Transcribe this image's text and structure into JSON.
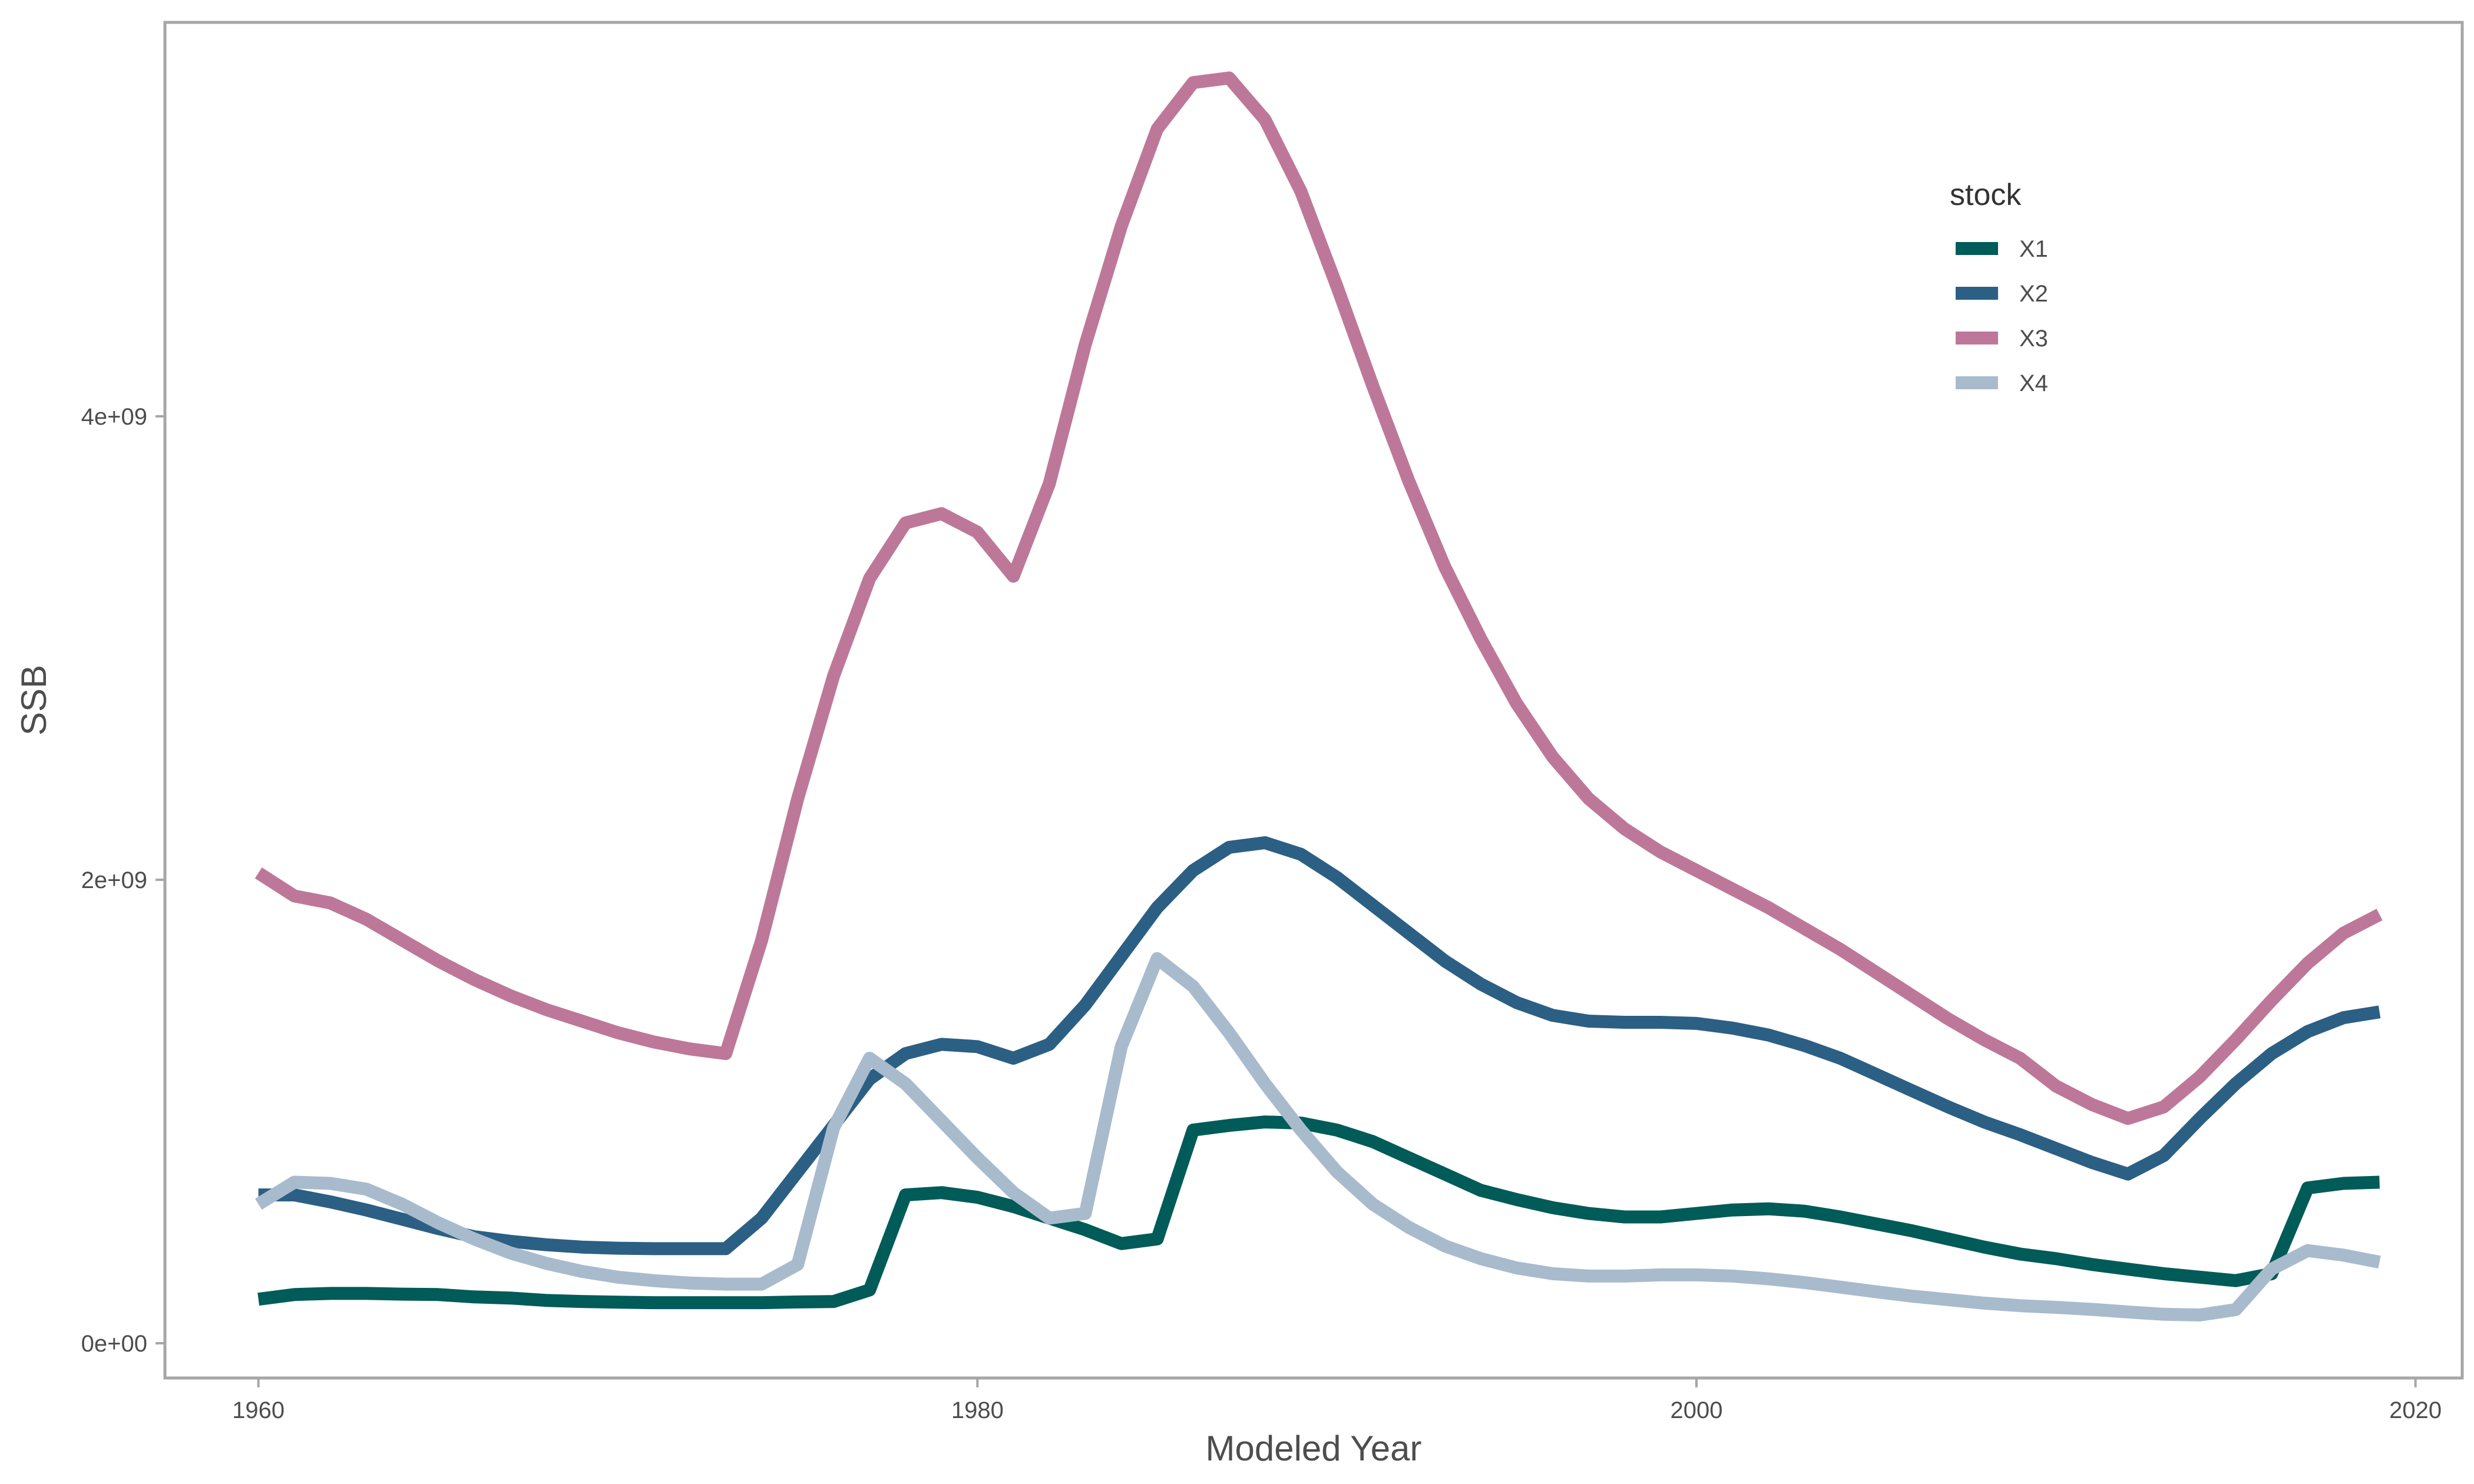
{
  "chart_data": {
    "type": "line",
    "title": "",
    "xlabel": "Modeled Year",
    "ylabel": "SSB",
    "xlim": [
      1957.4,
      2021.3
    ],
    "ylim": [
      -150000000,
      5700000000
    ],
    "xticks": [
      1960,
      1980,
      2000,
      2020
    ],
    "xtick_labels": [
      "1960",
      "1980",
      "2000",
      "2020"
    ],
    "yticks": [
      0,
      2000000000,
      4000000000
    ],
    "ytick_labels": [
      "0e+00",
      "2e+09",
      "4e+09"
    ],
    "grid": false,
    "legend": {
      "title": "stock",
      "placement": "top-right"
    },
    "x": [
      1960,
      1961,
      1962,
      1963,
      1964,
      1965,
      1966,
      1967,
      1968,
      1969,
      1970,
      1971,
      1972,
      1973,
      1974,
      1975,
      1976,
      1977,
      1978,
      1979,
      1980,
      1981,
      1982,
      1983,
      1984,
      1985,
      1986,
      1987,
      1988,
      1989,
      1990,
      1991,
      1992,
      1993,
      1994,
      1995,
      1996,
      1997,
      1998,
      1999,
      2000,
      2001,
      2002,
      2003,
      2004,
      2005,
      2006,
      2007,
      2008,
      2009,
      2010,
      2011,
      2012,
      2013,
      2014,
      2015,
      2016,
      2017,
      2018,
      2019
    ],
    "series": [
      {
        "name": "X1",
        "color": "#015b58",
        "values": [
          190000000,
          210000000,
          215000000,
          215000000,
          212000000,
          210000000,
          200000000,
          195000000,
          185000000,
          180000000,
          177000000,
          175000000,
          175000000,
          175000000,
          175000000,
          178000000,
          180000000,
          230000000,
          640000000,
          650000000,
          630000000,
          590000000,
          540000000,
          490000000,
          430000000,
          450000000,
          920000000,
          940000000,
          955000000,
          950000000,
          920000000,
          870000000,
          800000000,
          730000000,
          660000000,
          620000000,
          585000000,
          560000000,
          545000000,
          545000000,
          560000000,
          575000000,
          580000000,
          570000000,
          545000000,
          515000000,
          485000000,
          450000000,
          415000000,
          385000000,
          365000000,
          340000000,
          320000000,
          300000000,
          285000000,
          270000000,
          300000000,
          670000000,
          690000000,
          695000000
        ]
      },
      {
        "name": "X2",
        "color": "#2c5f84",
        "values": [
          640000000,
          640000000,
          610000000,
          575000000,
          535000000,
          495000000,
          460000000,
          440000000,
          425000000,
          415000000,
          410000000,
          408000000,
          408000000,
          408000000,
          540000000,
          740000000,
          940000000,
          1140000000,
          1250000000,
          1290000000,
          1280000000,
          1230000000,
          1290000000,
          1460000000,
          1670000000,
          1880000000,
          2040000000,
          2140000000,
          2160000000,
          2110000000,
          2010000000,
          1890000000,
          1770000000,
          1650000000,
          1550000000,
          1470000000,
          1415000000,
          1390000000,
          1385000000,
          1385000000,
          1380000000,
          1360000000,
          1330000000,
          1285000000,
          1230000000,
          1160000000,
          1090000000,
          1020000000,
          955000000,
          900000000,
          840000000,
          780000000,
          730000000,
          810000000,
          970000000,
          1120000000,
          1250000000,
          1345000000,
          1405000000,
          1430000000
        ]
      },
      {
        "name": "X3",
        "color": "#bd7899",
        "values": [
          2030000000,
          1930000000,
          1900000000,
          1830000000,
          1740000000,
          1650000000,
          1570000000,
          1500000000,
          1440000000,
          1390000000,
          1340000000,
          1300000000,
          1270000000,
          1250000000,
          1740000000,
          2350000000,
          2880000000,
          3300000000,
          3540000000,
          3580000000,
          3500000000,
          3310000000,
          3710000000,
          4310000000,
          4820000000,
          5240000000,
          5440000000,
          5460000000,
          5280000000,
          4970000000,
          4560000000,
          4130000000,
          3720000000,
          3350000000,
          3040000000,
          2760000000,
          2530000000,
          2350000000,
          2220000000,
          2120000000,
          2040000000,
          1960000000,
          1880000000,
          1790000000,
          1700000000,
          1600000000,
          1500000000,
          1400000000,
          1310000000,
          1230000000,
          1110000000,
          1030000000,
          970000000,
          1020000000,
          1150000000,
          1310000000,
          1480000000,
          1640000000,
          1770000000,
          1850000000
        ]
      },
      {
        "name": "X4",
        "color": "#a8bbcd",
        "values": [
          600000000,
          695000000,
          690000000,
          665000000,
          600000000,
          520000000,
          450000000,
          390000000,
          345000000,
          310000000,
          285000000,
          270000000,
          260000000,
          255000000,
          255000000,
          340000000,
          930000000,
          1230000000,
          1120000000,
          960000000,
          800000000,
          650000000,
          540000000,
          560000000,
          1280000000,
          1660000000,
          1540000000,
          1340000000,
          1120000000,
          920000000,
          740000000,
          600000000,
          500000000,
          420000000,
          365000000,
          325000000,
          300000000,
          290000000,
          290000000,
          295000000,
          295000000,
          290000000,
          278000000,
          262000000,
          242000000,
          222000000,
          203000000,
          188000000,
          173000000,
          162000000,
          155000000,
          146000000,
          135000000,
          125000000,
          122000000,
          145000000,
          320000000,
          400000000,
          380000000,
          350000000
        ]
      }
    ]
  }
}
